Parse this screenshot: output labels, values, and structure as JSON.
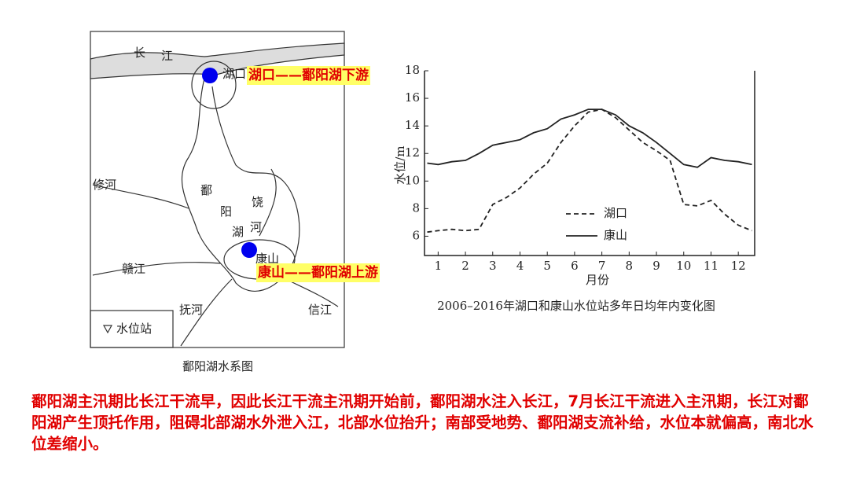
{
  "map": {
    "title": "鄱阳湖水系图",
    "labels": [
      "长",
      "江",
      "湖口",
      "鄱",
      "阳",
      "湖",
      "饶",
      "河",
      "修河",
      "赣江",
      "抚河",
      "信江",
      "康山"
    ],
    "legend": "水位站",
    "annotations": [
      "湖口——鄱阳湖下游",
      "康山——鄱阳湖上游"
    ]
  },
  "chart_data": {
    "type": "line",
    "title": "2006–2016年湖口和康山水位站多年日均年内变化图",
    "x_label": "月份",
    "y_label": "水位/m",
    "x": [
      0.6,
      1,
      1.5,
      2,
      2.5,
      3,
      3.5,
      4,
      4.5,
      5,
      5.5,
      6,
      6.5,
      7,
      7.5,
      8,
      8.5,
      9,
      9.5,
      10,
      10.5,
      11,
      11.5,
      12,
      12.5
    ],
    "series": [
      {
        "name": "湖口",
        "color": "#222222",
        "dash": true,
        "values": [
          6.3,
          6.4,
          6.5,
          6.4,
          6.5,
          8.3,
          8.8,
          9.5,
          10.5,
          11.3,
          12.8,
          14.0,
          15.0,
          15.2,
          14.6,
          13.7,
          12.8,
          12.2,
          11.5,
          8.3,
          8.2,
          8.6,
          7.6,
          6.8,
          6.4
        ]
      },
      {
        "name": "康山",
        "color": "#222222",
        "dash": false,
        "values": [
          11.3,
          11.2,
          11.4,
          11.5,
          12.0,
          12.6,
          12.8,
          13.0,
          13.5,
          13.8,
          14.5,
          14.8,
          15.2,
          15.2,
          14.8,
          14.0,
          13.5,
          12.8,
          12.0,
          11.2,
          11.0,
          11.7,
          11.5,
          11.4,
          11.2
        ]
      }
    ],
    "xlim": [
      0.5,
      12.6
    ],
    "ylim": [
      4.6,
      18
    ],
    "xticks": [
      1,
      2,
      3,
      4,
      5,
      6,
      7,
      8,
      9,
      10,
      11,
      12
    ],
    "yticks": [
      6,
      8,
      10,
      12,
      14,
      16,
      18
    ],
    "legend": "lower right"
  },
  "caption": "鄱阳湖主汛期比长江干流早，因此长江干流主汛期开始前，鄱阳湖水注入长江，7月长江干流进入主汛期，长江对鄱阳湖产生顶托作用，阻碍北部湖水外泄入江，北部水位抬升；南部受地势、鄱阳湖支流补给，水位本就偏高，南北水位差缩小。"
}
